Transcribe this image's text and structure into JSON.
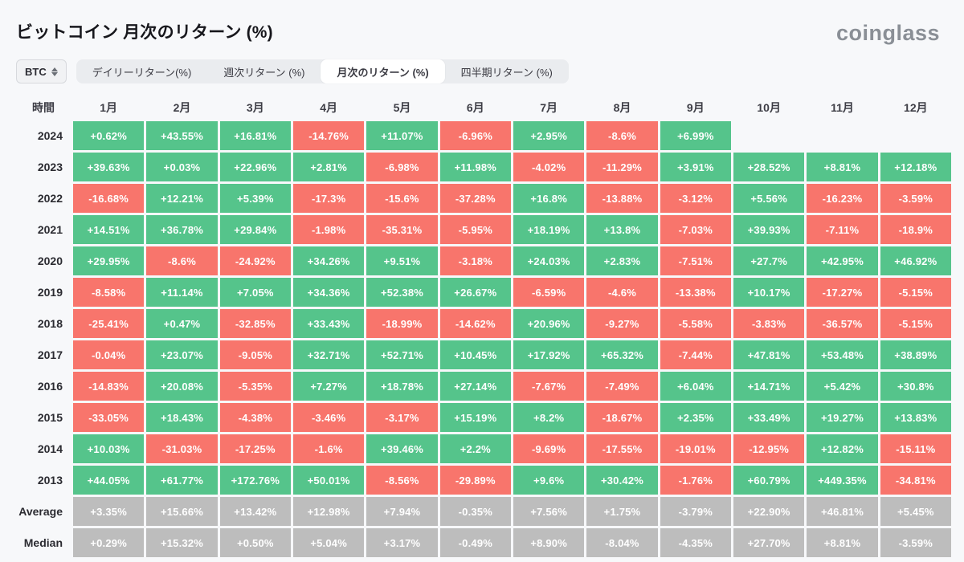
{
  "page": {
    "title": "ビットコイン 月次のリターン (%)",
    "logo": "coinglass"
  },
  "colors": {
    "positive": "#55c48b",
    "negative": "#f8756c",
    "neutral": "#bdbdbd"
  },
  "controls": {
    "coin_selector": "BTC",
    "tabs": [
      {
        "label": "デイリーリターン(%)",
        "active": false
      },
      {
        "label": "週次リターン (%)",
        "active": false
      },
      {
        "label": "月次のリターン (%)",
        "active": true
      },
      {
        "label": "四半期リターン (%)",
        "active": false
      }
    ]
  },
  "chart_data": {
    "type": "heatmap",
    "title": "ビットコイン 月次のリターン (%)",
    "time_header": "時間",
    "month_headers": [
      "1月",
      "2月",
      "3月",
      "4月",
      "5月",
      "6月",
      "7月",
      "8月",
      "9月",
      "10月",
      "11月",
      "12月"
    ],
    "rows": [
      {
        "label": "2024",
        "type": "year",
        "values": [
          "+0.62%",
          "+43.55%",
          "+16.81%",
          "-14.76%",
          "+11.07%",
          "-6.96%",
          "+2.95%",
          "-8.6%",
          "+6.99%",
          "",
          "",
          ""
        ]
      },
      {
        "label": "2023",
        "type": "year",
        "values": [
          "+39.63%",
          "+0.03%",
          "+22.96%",
          "+2.81%",
          "-6.98%",
          "+11.98%",
          "-4.02%",
          "-11.29%",
          "+3.91%",
          "+28.52%",
          "+8.81%",
          "+12.18%"
        ]
      },
      {
        "label": "2022",
        "type": "year",
        "values": [
          "-16.68%",
          "+12.21%",
          "+5.39%",
          "-17.3%",
          "-15.6%",
          "-37.28%",
          "+16.8%",
          "-13.88%",
          "-3.12%",
          "+5.56%",
          "-16.23%",
          "-3.59%"
        ]
      },
      {
        "label": "2021",
        "type": "year",
        "values": [
          "+14.51%",
          "+36.78%",
          "+29.84%",
          "-1.98%",
          "-35.31%",
          "-5.95%",
          "+18.19%",
          "+13.8%",
          "-7.03%",
          "+39.93%",
          "-7.11%",
          "-18.9%"
        ]
      },
      {
        "label": "2020",
        "type": "year",
        "values": [
          "+29.95%",
          "-8.6%",
          "-24.92%",
          "+34.26%",
          "+9.51%",
          "-3.18%",
          "+24.03%",
          "+2.83%",
          "-7.51%",
          "+27.7%",
          "+42.95%",
          "+46.92%"
        ]
      },
      {
        "label": "2019",
        "type": "year",
        "values": [
          "-8.58%",
          "+11.14%",
          "+7.05%",
          "+34.36%",
          "+52.38%",
          "+26.67%",
          "-6.59%",
          "-4.6%",
          "-13.38%",
          "+10.17%",
          "-17.27%",
          "-5.15%"
        ]
      },
      {
        "label": "2018",
        "type": "year",
        "values": [
          "-25.41%",
          "+0.47%",
          "-32.85%",
          "+33.43%",
          "-18.99%",
          "-14.62%",
          "+20.96%",
          "-9.27%",
          "-5.58%",
          "-3.83%",
          "-36.57%",
          "-5.15%"
        ]
      },
      {
        "label": "2017",
        "type": "year",
        "values": [
          "-0.04%",
          "+23.07%",
          "-9.05%",
          "+32.71%",
          "+52.71%",
          "+10.45%",
          "+17.92%",
          "+65.32%",
          "-7.44%",
          "+47.81%",
          "+53.48%",
          "+38.89%"
        ]
      },
      {
        "label": "2016",
        "type": "year",
        "values": [
          "-14.83%",
          "+20.08%",
          "-5.35%",
          "+7.27%",
          "+18.78%",
          "+27.14%",
          "-7.67%",
          "-7.49%",
          "+6.04%",
          "+14.71%",
          "+5.42%",
          "+30.8%"
        ]
      },
      {
        "label": "2015",
        "type": "year",
        "values": [
          "-33.05%",
          "+18.43%",
          "-4.38%",
          "-3.46%",
          "-3.17%",
          "+15.19%",
          "+8.2%",
          "-18.67%",
          "+2.35%",
          "+33.49%",
          "+19.27%",
          "+13.83%"
        ]
      },
      {
        "label": "2014",
        "type": "year",
        "values": [
          "+10.03%",
          "-31.03%",
          "-17.25%",
          "-1.6%",
          "+39.46%",
          "+2.2%",
          "-9.69%",
          "-17.55%",
          "-19.01%",
          "-12.95%",
          "+12.82%",
          "-15.11%"
        ]
      },
      {
        "label": "2013",
        "type": "year",
        "values": [
          "+44.05%",
          "+61.77%",
          "+172.76%",
          "+50.01%",
          "-8.56%",
          "-29.89%",
          "+9.6%",
          "+30.42%",
          "-1.76%",
          "+60.79%",
          "+449.35%",
          "-34.81%"
        ]
      },
      {
        "label": "Average",
        "type": "summary",
        "values": [
          "+3.35%",
          "+15.66%",
          "+13.42%",
          "+12.98%",
          "+7.94%",
          "-0.35%",
          "+7.56%",
          "+1.75%",
          "-3.79%",
          "+22.90%",
          "+46.81%",
          "+5.45%"
        ]
      },
      {
        "label": "Median",
        "type": "summary",
        "values": [
          "+0.29%",
          "+15.32%",
          "+0.50%",
          "+5.04%",
          "+3.17%",
          "-0.49%",
          "+8.90%",
          "-8.04%",
          "-4.35%",
          "+27.70%",
          "+8.81%",
          "-3.59%"
        ]
      }
    ]
  }
}
